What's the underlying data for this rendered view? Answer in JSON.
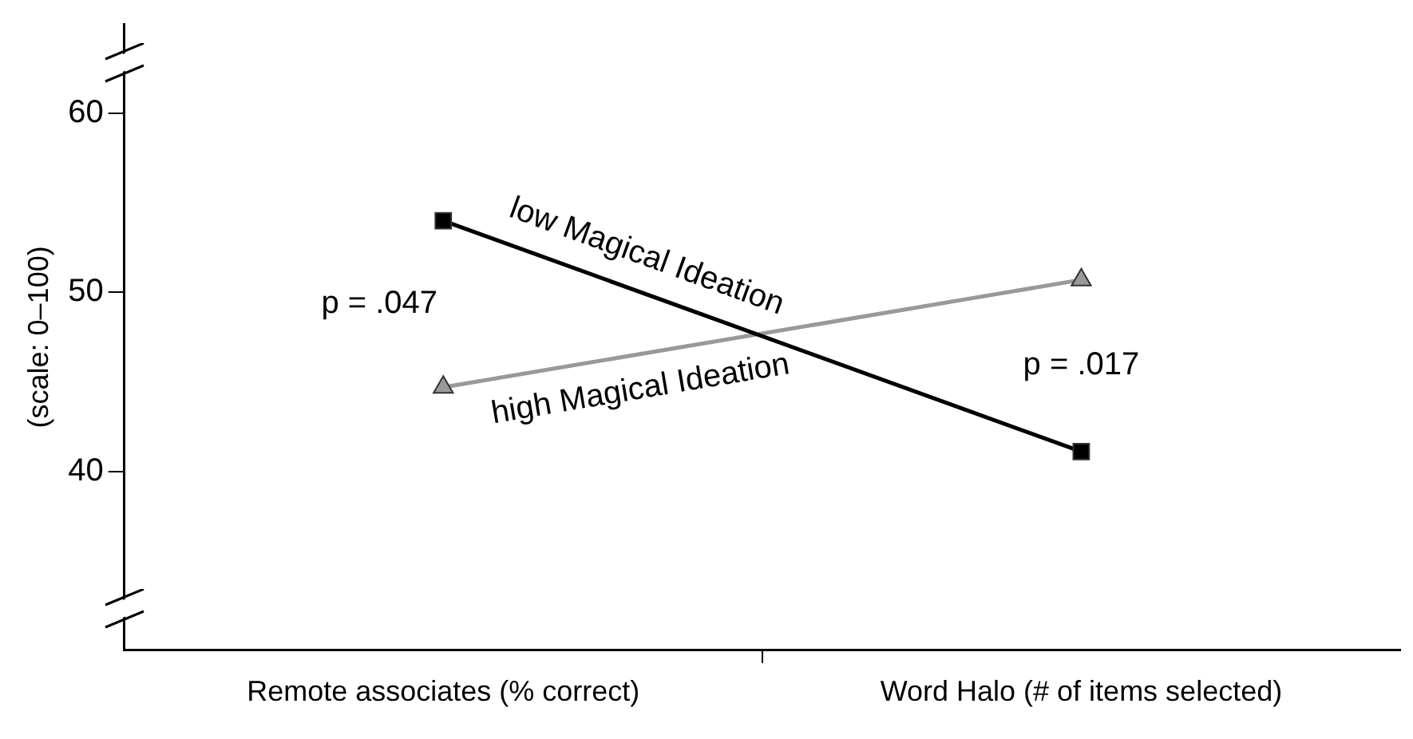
{
  "chart_data": {
    "type": "line",
    "ylabel": "(scale: 0–100)",
    "categories": [
      "Remote associates (% correct)",
      "Word Halo (# of items selected)"
    ],
    "series": [
      {
        "name": "low Magical Ideation",
        "color": "#000000",
        "marker": "square",
        "values": [
          54,
          41.1
        ]
      },
      {
        "name": "high Magical Ideation",
        "color": "#999999",
        "marker": "triangle",
        "values": [
          44.7,
          50.7
        ]
      }
    ],
    "ylim": [
      30,
      65
    ],
    "yticks": [
      40,
      50,
      60
    ],
    "grid": false,
    "legend": false,
    "annotations": [
      "p = .047",
      "p = .017"
    ]
  }
}
